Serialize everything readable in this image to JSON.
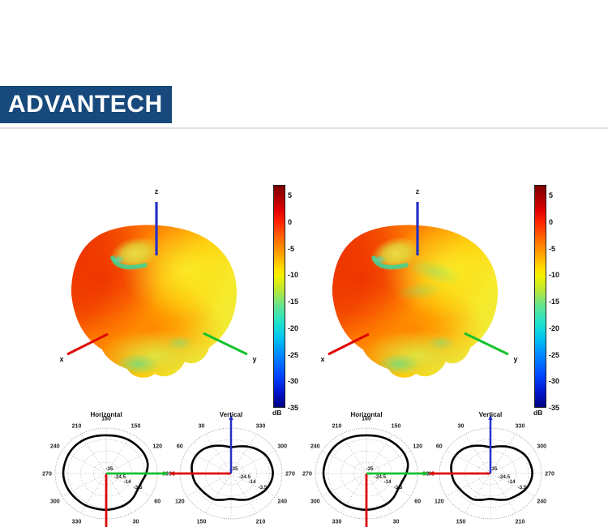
{
  "logo": {
    "text": "ADVANTECH",
    "bg_color": "#17497d",
    "text_color": "#ffffff"
  },
  "colorbars": [
    {
      "unit": "dB",
      "tick_values": [
        5,
        0,
        -5,
        -10,
        -15,
        -20,
        -25,
        -30,
        -35
      ],
      "top_value": 7,
      "bottom_value": -35
    },
    {
      "unit": "dB",
      "tick_values": [
        5,
        0,
        -5,
        -10,
        -15,
        -20,
        -25,
        -30,
        -35
      ],
      "top_value": 7,
      "bottom_value": -35
    }
  ],
  "chart_data": [
    {
      "type": "polar",
      "title": "Horizontal",
      "orientation": "horizontal",
      "units": "dB",
      "r_axis": {
        "min": -35,
        "max": 7,
        "ring_values": [
          -35,
          -24.5,
          -14,
          -3.5
        ],
        "ring_labels": [
          "-35",
          "-24.5",
          "-14",
          "-3.5"
        ],
        "ring_fracs": [
          0,
          0.25,
          0.5,
          0.75
        ]
      },
      "angle_labels_deg": [
        30,
        60,
        90,
        120,
        150,
        180,
        210,
        240,
        270,
        300,
        330
      ],
      "pattern": {
        "angles_deg": [
          0,
          15,
          30,
          45,
          60,
          75,
          90,
          105,
          120,
          135,
          150,
          165,
          180,
          195,
          210,
          225,
          240,
          255,
          270,
          285,
          300,
          315,
          330,
          345
        ],
        "gain_db": [
          -1.4,
          -1.8,
          -2.2,
          -3.5,
          -5.2,
          -4.8,
          -2.2,
          0.3,
          1.1,
          1.1,
          1.1,
          0.7,
          0.3,
          0.7,
          1.1,
          1.1,
          0.7,
          0.3,
          0.3,
          -0.1,
          -0.6,
          -1.0,
          -1.0,
          -1.4
        ]
      },
      "axis_markers": [
        {
          "color": "#dd0707",
          "direction": "down"
        },
        {
          "color": "#15c02c",
          "direction": "right"
        }
      ]
    },
    {
      "type": "polar",
      "title": "Vertical",
      "orientation": "vertical",
      "units": "dB",
      "r_axis": {
        "min": -35,
        "max": 7,
        "ring_values": [
          -35,
          -24.5,
          -14,
          -3.5
        ],
        "ring_labels": [
          "-35",
          "-24.5",
          "-14",
          "-3.5"
        ],
        "ring_fracs": [
          0,
          0.25,
          0.5,
          0.75
        ]
      },
      "angle_labels_deg": [
        30,
        60,
        90,
        120,
        150,
        210,
        240,
        270,
        300,
        330
      ],
      "pattern": {
        "angles_deg": [
          0,
          15,
          30,
          45,
          60,
          75,
          90,
          105,
          120,
          135,
          150,
          165,
          180,
          195,
          210,
          225,
          240,
          255,
          270,
          285,
          300,
          315,
          330,
          345
        ],
        "gain_db": [
          -10.6,
          -8.5,
          -5.6,
          -3.1,
          -1.8,
          -1.8,
          -3.1,
          -4.3,
          -6.0,
          -6.9,
          -7.3,
          -9.8,
          -11.5,
          -9.8,
          -7.3,
          -5.6,
          -3.1,
          -1.4,
          -0.6,
          -1.0,
          -1.8,
          -3.9,
          -6.4,
          -9.0
        ]
      },
      "axis_markers": [
        {
          "color": "#dd0707",
          "direction": "left"
        },
        {
          "color": "#2431c8",
          "direction": "up"
        }
      ]
    },
    {
      "type": "polar",
      "title": "Horizontal",
      "orientation": "horizontal",
      "units": "dB",
      "r_axis": {
        "min": -35,
        "max": 7,
        "ring_values": [
          -35,
          -24.5,
          -14,
          -3.5
        ],
        "ring_labels": [
          "-35",
          "-24.5",
          "-14",
          "-3.5"
        ],
        "ring_fracs": [
          0,
          0.25,
          0.5,
          0.75
        ]
      },
      "angle_labels_deg": [
        30,
        60,
        90,
        120,
        150,
        180,
        210,
        240,
        270,
        300,
        330
      ],
      "pattern": {
        "angles_deg": [
          0,
          15,
          30,
          45,
          60,
          75,
          90,
          105,
          120,
          135,
          150,
          165,
          180,
          195,
          210,
          225,
          240,
          255,
          270,
          285,
          300,
          315,
          330,
          345
        ],
        "gain_db": [
          -1.4,
          -1.8,
          -2.2,
          -3.5,
          -5.2,
          -4.8,
          -2.2,
          0.3,
          1.1,
          1.1,
          1.1,
          0.7,
          0.3,
          0.7,
          1.1,
          1.1,
          0.7,
          0.3,
          0.3,
          -0.1,
          -0.6,
          -1.0,
          -1.0,
          -1.4
        ]
      },
      "axis_markers": [
        {
          "color": "#dd0707",
          "direction": "down"
        },
        {
          "color": "#15c02c",
          "direction": "right"
        }
      ]
    },
    {
      "type": "polar",
      "title": "Vertical",
      "orientation": "vertical",
      "units": "dB",
      "r_axis": {
        "min": -35,
        "max": 7,
        "ring_values": [
          -35,
          -24.5,
          -14,
          -3.5
        ],
        "ring_labels": [
          "-35",
          "-24.5",
          "-14",
          "-3.5"
        ],
        "ring_fracs": [
          0,
          0.25,
          0.5,
          0.75
        ]
      },
      "angle_labels_deg": [
        30,
        60,
        90,
        120,
        150,
        210,
        240,
        270,
        300,
        330
      ],
      "pattern": {
        "angles_deg": [
          0,
          15,
          30,
          45,
          60,
          75,
          90,
          105,
          120,
          135,
          150,
          165,
          180,
          195,
          210,
          225,
          240,
          255,
          270,
          285,
          300,
          315,
          330,
          345
        ],
        "gain_db": [
          -10.6,
          -8.5,
          -5.6,
          -3.1,
          -1.8,
          -1.8,
          -3.1,
          -4.3,
          -6.0,
          -6.9,
          -7.3,
          -9.8,
          -11.5,
          -9.8,
          -7.3,
          -5.6,
          -3.1,
          -1.4,
          -0.6,
          -1.0,
          -1.8,
          -3.9,
          -6.4,
          -9.0
        ]
      },
      "axis_markers": [
        {
          "color": "#dd0707",
          "direction": "left"
        },
        {
          "color": "#2431c8",
          "direction": "up"
        }
      ]
    },
    {
      "type": "surface_3d",
      "description": "3D antenna radiation pattern, gain in dB with jet colormap",
      "axis_labels": {
        "x": "x",
        "y": "y",
        "z": "z"
      },
      "gain_scale_db": {
        "min": -35,
        "max": 7,
        "unit": "dB"
      }
    },
    {
      "type": "surface_3d",
      "description": "3D antenna radiation pattern, gain in dB with jet colormap",
      "axis_labels": {
        "x": "x",
        "y": "y",
        "z": "z"
      },
      "gain_scale_db": {
        "min": -35,
        "max": 7,
        "unit": "dB"
      }
    }
  ]
}
